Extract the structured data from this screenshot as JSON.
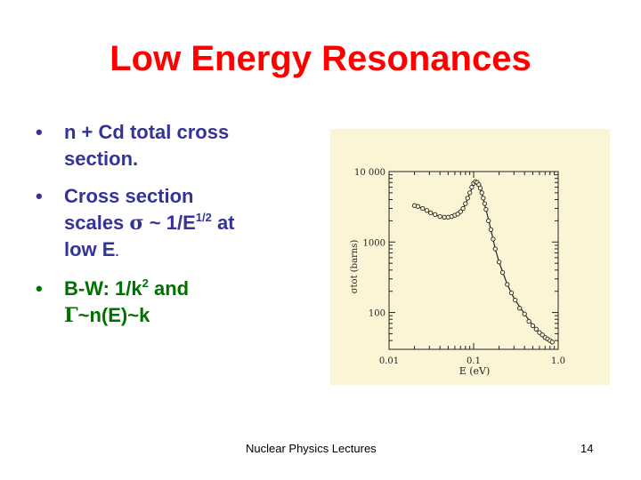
{
  "slide": {
    "title": "Low Energy Resonances",
    "bullets": [
      {
        "text": "n + Cd total cross section."
      },
      {
        "line1": "Cross section",
        "scales": "scales",
        "sigma": "σ",
        "tilde_expr": " ~ 1/E",
        "sup": "1/2",
        "at": " at",
        "line3": "low E",
        "period": "."
      },
      {
        "bw": "B-W: 1/k",
        "sup": "2",
        "and": " and",
        "gamma": "Γ",
        "rest": "~n(E)~k"
      }
    ],
    "footer": {
      "center": "Nuclear Physics Lectures",
      "page": "14"
    }
  },
  "chart_data": {
    "type": "scatter",
    "xscale": "log",
    "yscale": "log",
    "xlim": [
      0.01,
      1.0
    ],
    "ylim": [
      30,
      10000
    ],
    "xticks": [
      "0.01",
      "0.1",
      "1.0"
    ],
    "yticks": [
      "10 000",
      "1000",
      "100"
    ],
    "xlabel": "E (eV)",
    "ylabel": "σtot (barns)",
    "series": [
      {
        "style": "points-open-circles",
        "x": [
          0.02,
          0.022,
          0.025,
          0.028,
          0.031,
          0.035,
          0.04,
          0.045,
          0.05,
          0.055,
          0.06,
          0.065,
          0.07,
          0.075,
          0.08,
          0.085,
          0.09,
          0.095,
          0.1,
          0.105,
          0.11,
          0.115,
          0.12,
          0.125,
          0.13,
          0.135,
          0.14,
          0.15,
          0.16,
          0.17,
          0.18,
          0.2,
          0.22,
          0.25,
          0.28,
          0.31,
          0.35,
          0.4,
          0.45,
          0.5,
          0.55,
          0.6,
          0.65,
          0.7,
          0.75,
          0.8,
          0.85
        ],
        "y": [
          3300,
          3200,
          3000,
          2800,
          2600,
          2450,
          2300,
          2250,
          2250,
          2300,
          2400,
          2500,
          2700,
          3000,
          3500,
          4200,
          5000,
          6000,
          6800,
          7200,
          7000,
          6500,
          5800,
          5000,
          4200,
          3500,
          2900,
          2000,
          1500,
          1100,
          800,
          520,
          370,
          250,
          190,
          150,
          115,
          95,
          75,
          65,
          58,
          52,
          48,
          44,
          42,
          40,
          38
        ]
      },
      {
        "style": "line-fit",
        "x": [
          0.02,
          0.025,
          0.03,
          0.04,
          0.05,
          0.06,
          0.07,
          0.08,
          0.09,
          0.1,
          0.11,
          0.12,
          0.13,
          0.14,
          0.16,
          0.18,
          0.2,
          0.25,
          0.3,
          0.4,
          0.5,
          0.6,
          0.7,
          0.85
        ],
        "y": [
          3300,
          3000,
          2650,
          2300,
          2250,
          2380,
          2650,
          3400,
          4900,
          6700,
          6900,
          5700,
          4100,
          2900,
          1500,
          800,
          520,
          250,
          160,
          95,
          66,
          52,
          44,
          38
        ]
      }
    ]
  }
}
